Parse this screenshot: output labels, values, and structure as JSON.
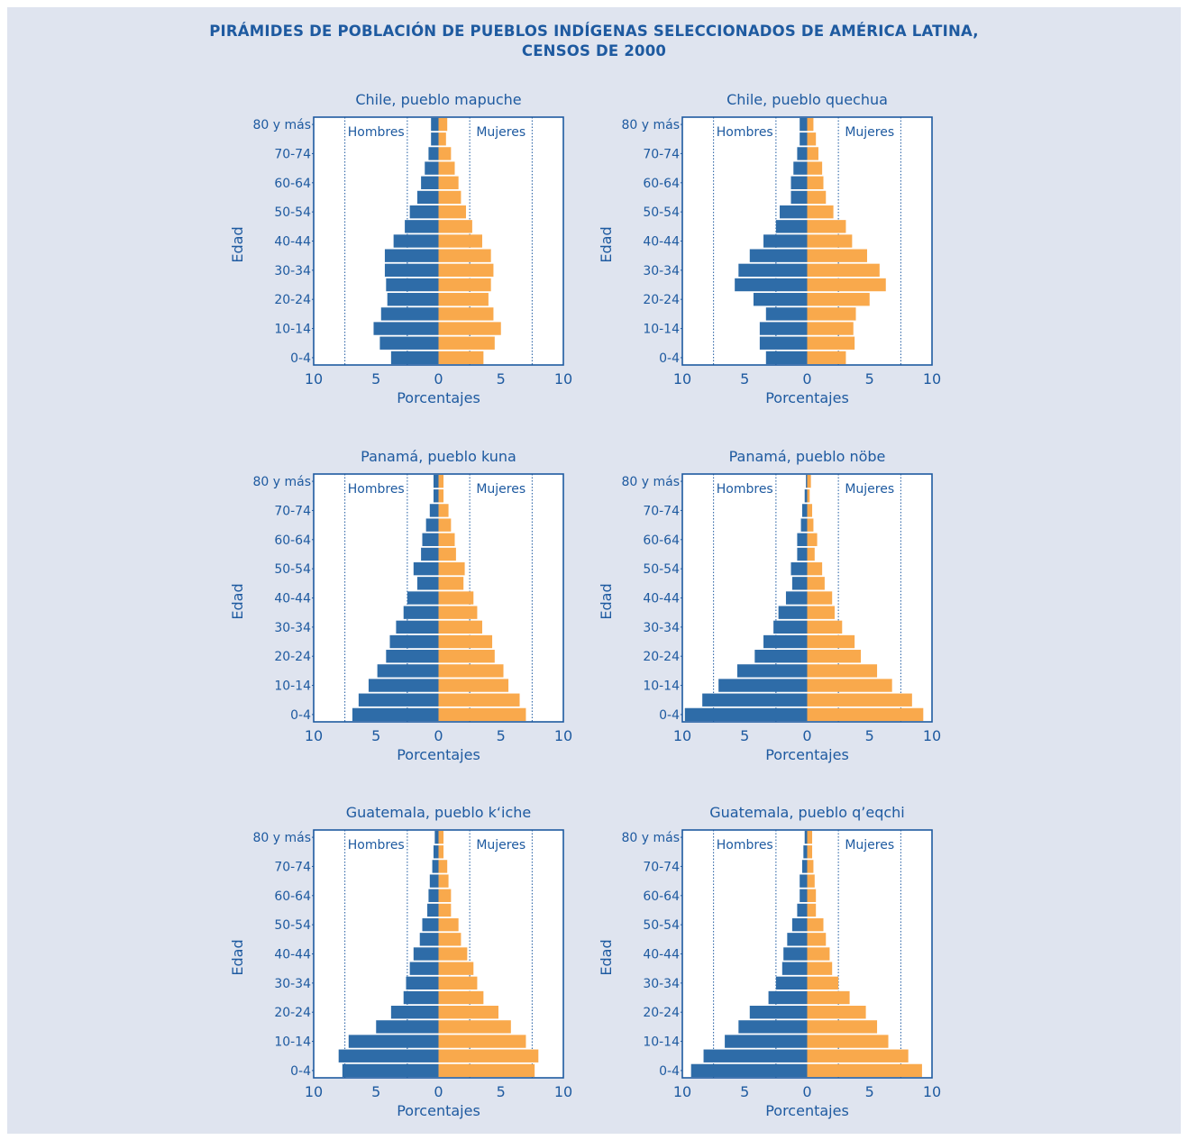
{
  "figure": {
    "title_line1": "PIRÁMIDES DE POBLACIÓN DE PUEBLOS INDÍGENAS SELECCIONADOS DE AMÉRICA LATINA,",
    "title_line2": "CENSOS DE 2000"
  },
  "colors": {
    "men": "#2e6ca8",
    "women": "#f9a94c",
    "text": "#1e5aa0",
    "frame": "#1e5aa0",
    "background": "#dfe4ef"
  },
  "chart_data": [
    {
      "type": "bar",
      "orientation": "horizontal-pyramid",
      "title": "Chile, pueblo mapuche",
      "xlabel": "Porcentajes",
      "ylabel": "Edad",
      "xlim": [
        -10,
        10
      ],
      "xticks": [
        "10",
        "5",
        "0",
        "5",
        "10"
      ],
      "grid": true,
      "age_groups": [
        "0-4",
        "5-9",
        "10-14",
        "15-19",
        "20-24",
        "25-29",
        "30-34",
        "35-39",
        "40-44",
        "45-49",
        "50-54",
        "55-59",
        "60-64",
        "65-69",
        "70-74",
        "75-79",
        "80 y más"
      ],
      "y_tick_labels": [
        "0-4",
        "10-14",
        "20-24",
        "30-34",
        "40-44",
        "50-54",
        "60-64",
        "70-74",
        "80 y más"
      ],
      "series": [
        {
          "name": "Hombres",
          "values": [
            3.8,
            4.7,
            5.2,
            4.6,
            4.1,
            4.2,
            4.3,
            4.3,
            3.6,
            2.7,
            2.3,
            1.7,
            1.4,
            1.1,
            0.8,
            0.6,
            0.6
          ]
        },
        {
          "name": "Mujeres",
          "values": [
            3.6,
            4.5,
            5.0,
            4.4,
            4.0,
            4.2,
            4.4,
            4.2,
            3.5,
            2.7,
            2.2,
            1.8,
            1.6,
            1.3,
            1.0,
            0.6,
            0.7
          ]
        }
      ]
    },
    {
      "type": "bar",
      "orientation": "horizontal-pyramid",
      "title": "Chile, pueblo quechua",
      "xlabel": "Porcentajes",
      "ylabel": "Edad",
      "xlim": [
        -10,
        10
      ],
      "xticks": [
        "10",
        "5",
        "0",
        "5",
        "10"
      ],
      "grid": true,
      "age_groups": [
        "0-4",
        "5-9",
        "10-14",
        "15-19",
        "20-24",
        "25-29",
        "30-34",
        "35-39",
        "40-44",
        "45-49",
        "50-54",
        "55-59",
        "60-64",
        "65-69",
        "70-74",
        "75-79",
        "80 y más"
      ],
      "y_tick_labels": [
        "0-4",
        "10-14",
        "20-24",
        "30-34",
        "40-44",
        "50-54",
        "60-64",
        "70-74",
        "80 y más"
      ],
      "series": [
        {
          "name": "Hombres",
          "values": [
            3.3,
            3.8,
            3.8,
            3.3,
            4.3,
            5.8,
            5.5,
            4.6,
            3.5,
            2.5,
            2.2,
            1.3,
            1.3,
            1.1,
            0.8,
            0.6,
            0.6
          ]
        },
        {
          "name": "Mujeres",
          "values": [
            3.1,
            3.8,
            3.7,
            3.9,
            5.0,
            6.3,
            5.8,
            4.8,
            3.6,
            3.1,
            2.1,
            1.5,
            1.3,
            1.2,
            0.9,
            0.7,
            0.5
          ]
        }
      ]
    },
    {
      "type": "bar",
      "orientation": "horizontal-pyramid",
      "title": "Panamá, pueblo kuna",
      "xlabel": "Porcentajes",
      "ylabel": "Edad",
      "xlim": [
        -10,
        10
      ],
      "xticks": [
        "10",
        "5",
        "0",
        "5",
        "10"
      ],
      "grid": true,
      "age_groups": [
        "0-4",
        "5-9",
        "10-14",
        "15-19",
        "20-24",
        "25-29",
        "30-34",
        "35-39",
        "40-44",
        "45-49",
        "50-54",
        "55-59",
        "60-64",
        "65-69",
        "70-74",
        "75-79",
        "80 y más"
      ],
      "y_tick_labels": [
        "0-4",
        "10-14",
        "20-24",
        "30-34",
        "40-44",
        "50-54",
        "60-64",
        "70-74",
        "80 y más"
      ],
      "series": [
        {
          "name": "Hombres",
          "values": [
            6.9,
            6.4,
            5.6,
            4.9,
            4.2,
            3.9,
            3.4,
            2.8,
            2.5,
            1.7,
            2.0,
            1.4,
            1.3,
            1.0,
            0.7,
            0.4,
            0.4
          ]
        },
        {
          "name": "Mujeres",
          "values": [
            7.0,
            6.5,
            5.6,
            5.2,
            4.5,
            4.3,
            3.5,
            3.1,
            2.8,
            2.0,
            2.1,
            1.4,
            1.3,
            1.0,
            0.8,
            0.4,
            0.4
          ]
        }
      ]
    },
    {
      "type": "bar",
      "orientation": "horizontal-pyramid",
      "title": "Panamá, pueblo nöbe",
      "xlabel": "Porcentajes",
      "ylabel": "Edad",
      "xlim": [
        -10,
        10
      ],
      "xticks": [
        "10",
        "5",
        "0",
        "5",
        "10"
      ],
      "grid": true,
      "age_groups": [
        "0-4",
        "5-9",
        "10-14",
        "15-19",
        "20-24",
        "25-29",
        "30-34",
        "35-39",
        "40-44",
        "45-49",
        "50-54",
        "55-59",
        "60-64",
        "65-69",
        "70-74",
        "75-79",
        "80 y más"
      ],
      "y_tick_labels": [
        "0-4",
        "10-14",
        "20-24",
        "30-34",
        "40-44",
        "50-54",
        "60-64",
        "70-74",
        "80 y más"
      ],
      "series": [
        {
          "name": "Hombres",
          "values": [
            9.8,
            8.4,
            7.1,
            5.6,
            4.2,
            3.5,
            2.7,
            2.3,
            1.7,
            1.2,
            1.3,
            0.8,
            0.8,
            0.5,
            0.4,
            0.2,
            0.1
          ]
        },
        {
          "name": "Mujeres",
          "values": [
            9.3,
            8.4,
            6.8,
            5.6,
            4.3,
            3.8,
            2.8,
            2.2,
            2.0,
            1.4,
            1.2,
            0.6,
            0.8,
            0.5,
            0.4,
            0.2,
            0.3
          ]
        }
      ]
    },
    {
      "type": "bar",
      "orientation": "horizontal-pyramid",
      "title": "Guatemala, pueblo k‘iche",
      "xlabel": "Porcentajes",
      "ylabel": "Edad",
      "xlim": [
        -10,
        10
      ],
      "xticks": [
        "10",
        "5",
        "0",
        "5",
        "10"
      ],
      "grid": true,
      "age_groups": [
        "0-4",
        "5-9",
        "10-14",
        "15-19",
        "20-24",
        "25-29",
        "30-34",
        "35-39",
        "40-44",
        "45-49",
        "50-54",
        "55-59",
        "60-64",
        "65-69",
        "70-74",
        "75-79",
        "80 y más"
      ],
      "y_tick_labels": [
        "0-4",
        "10-14",
        "20-24",
        "30-34",
        "40-44",
        "50-54",
        "60-64",
        "70-74",
        "80 y más"
      ],
      "series": [
        {
          "name": "Hombres",
          "values": [
            7.7,
            8.0,
            7.2,
            5.0,
            3.8,
            2.8,
            2.6,
            2.3,
            2.0,
            1.5,
            1.3,
            0.9,
            0.8,
            0.7,
            0.5,
            0.4,
            0.3
          ]
        },
        {
          "name": "Mujeres",
          "values": [
            7.7,
            8.0,
            7.0,
            5.8,
            4.8,
            3.6,
            3.1,
            2.8,
            2.3,
            1.8,
            1.6,
            1.0,
            1.0,
            0.8,
            0.7,
            0.4,
            0.4
          ]
        }
      ]
    },
    {
      "type": "bar",
      "orientation": "horizontal-pyramid",
      "title": "Guatemala, pueblo q’eqchi",
      "xlabel": "Porcentajes",
      "ylabel": "Edad",
      "xlim": [
        -10,
        10
      ],
      "xticks": [
        "10",
        "5",
        "0",
        "5",
        "10"
      ],
      "grid": true,
      "age_groups": [
        "0-4",
        "5-9",
        "10-14",
        "15-19",
        "20-24",
        "25-29",
        "30-34",
        "35-39",
        "40-44",
        "45-49",
        "50-54",
        "55-59",
        "60-64",
        "65-69",
        "70-74",
        "75-79",
        "80 y más"
      ],
      "y_tick_labels": [
        "0-4",
        "10-14",
        "20-24",
        "30-34",
        "40-44",
        "50-54",
        "60-64",
        "70-74",
        "80 y más"
      ],
      "series": [
        {
          "name": "Hombres",
          "values": [
            9.3,
            8.3,
            6.6,
            5.5,
            4.6,
            3.1,
            2.5,
            2.0,
            1.9,
            1.6,
            1.2,
            0.8,
            0.6,
            0.6,
            0.4,
            0.3,
            0.2
          ]
        },
        {
          "name": "Mujeres",
          "values": [
            9.2,
            8.1,
            6.5,
            5.6,
            4.7,
            3.4,
            2.5,
            2.0,
            1.8,
            1.5,
            1.3,
            0.7,
            0.7,
            0.6,
            0.5,
            0.4,
            0.4
          ]
        }
      ]
    }
  ]
}
